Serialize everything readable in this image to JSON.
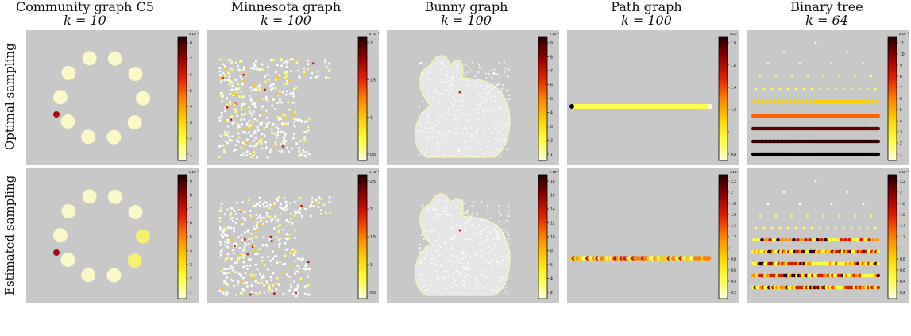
{
  "columns": [
    {
      "name": "Community graph C5",
      "k": "k = 10"
    },
    {
      "name": "Minnesota graph",
      "k": "k = 100"
    },
    {
      "name": "Bunny graph",
      "k": "k = 100"
    },
    {
      "name": "Path graph",
      "k": "k = 100"
    },
    {
      "name": "Binary tree",
      "k": "k = 64"
    }
  ],
  "rows": [
    {
      "label": "Optimal sampling"
    },
    {
      "label": "Estimated sampling"
    }
  ],
  "colorbars": [
    {
      "exponent": "x 10⁻³",
      "ticks": [
        "1",
        "2",
        "3",
        "4",
        "5",
        "6",
        "7",
        "8"
      ]
    },
    {
      "exponent": "x 10⁻³",
      "ticks": [
        "0.5",
        "1",
        "1.5",
        "2"
      ]
    },
    {
      "exponent": "x 10⁻³",
      "ticks": [
        "1",
        "2",
        "3",
        "4",
        "5",
        "6",
        "7",
        "8",
        "9"
      ]
    },
    {
      "exponent": "x 10⁻³",
      "ticks": [
        "0.8",
        "1",
        "1.2",
        "1.4",
        "1.6",
        "1.8"
      ]
    },
    {
      "exponent": "x 10⁻³",
      "ticks": [
        "1",
        "2",
        "3",
        "4",
        "5",
        "6",
        "7",
        "8",
        "9",
        "10",
        "11"
      ]
    },
    {
      "exponent": "x 10⁻³",
      "ticks": [
        "1",
        "2",
        "3",
        "4",
        "5",
        "6",
        "7",
        "8",
        "9"
      ]
    },
    {
      "exponent": "x 10⁻³",
      "ticks": [
        "0.5",
        "1",
        "1.5",
        "2",
        "2.5"
      ]
    },
    {
      "exponent": "x 10⁻³",
      "ticks": [
        "2",
        "4",
        "6",
        "8",
        "10",
        "12",
        "14",
        "16",
        "18"
      ]
    },
    {
      "exponent": "x 10⁻³",
      "ticks": [
        "0.2",
        "0.4",
        "0.6",
        "0.8",
        "1",
        "1.2",
        "1.4",
        "1.6",
        "1.8",
        "2",
        "2.2"
      ]
    },
    {
      "exponent": "x 10⁻³",
      "ticks": [
        "0.2",
        "0.4",
        "0.6",
        "0.8",
        "1",
        "1.2",
        "1.4",
        "1.6",
        "1.8",
        "2",
        "2.2"
      ]
    }
  ],
  "colors": {
    "panel_bg": "#c8c8c8",
    "colormap": [
      "#ffffe0",
      "#ffff40",
      "#ffd000",
      "#ff8000",
      "#e02000",
      "#900000",
      "#200000"
    ]
  }
}
